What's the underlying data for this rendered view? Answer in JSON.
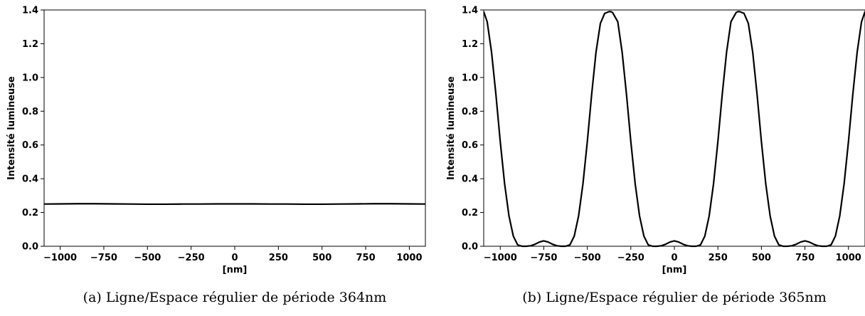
{
  "chart_data": [
    {
      "type": "line",
      "caption": "(a) Ligne/Espace régulier de période 364nm",
      "xlabel": "[nm]",
      "ylabel": "Intensité lumineuse",
      "xlim": [
        -1092,
        1092
      ],
      "ylim": [
        0,
        1.4
      ],
      "xticks": [
        -1000,
        -750,
        -500,
        -250,
        0,
        250,
        500,
        750,
        1000
      ],
      "xtick_labels": [
        "−1000",
        "−750",
        "−500",
        "−250",
        "0",
        "250",
        "500",
        "750",
        "1000"
      ],
      "yticks": [
        0.0,
        0.2,
        0.4,
        0.6,
        0.8,
        1.0,
        1.2,
        1.4
      ],
      "ytick_labels": [
        "0.0",
        "0.2",
        "0.4",
        "0.6",
        "0.8",
        "1.0",
        "1.2",
        "1.4"
      ],
      "grid": false,
      "line_color": "#000000",
      "series": [
        {
          "x": [
            -1092,
            -1000,
            -900,
            -800,
            -700,
            -600,
            -500,
            -400,
            -300,
            -200,
            -100,
            0,
            100,
            200,
            300,
            400,
            500,
            600,
            700,
            800,
            900,
            1000,
            1092
          ],
          "y": [
            0.25,
            0.251,
            0.252,
            0.252,
            0.251,
            0.25,
            0.249,
            0.249,
            0.25,
            0.25,
            0.251,
            0.251,
            0.251,
            0.25,
            0.25,
            0.249,
            0.249,
            0.25,
            0.251,
            0.252,
            0.252,
            0.251,
            0.25
          ]
        }
      ]
    },
    {
      "type": "line",
      "caption": "(b) Ligne/Espace régulier de période 365nm",
      "xlabel": "[nm]",
      "ylabel": "Intensité lumineuse",
      "xlim": [
        -1095,
        1095
      ],
      "ylim": [
        0,
        1.4
      ],
      "xticks": [
        -1000,
        -750,
        -500,
        -250,
        0,
        250,
        500,
        750,
        1000
      ],
      "xtick_labels": [
        "−1000",
        "−750",
        "−500",
        "−250",
        "0",
        "250",
        "500",
        "750",
        "1000"
      ],
      "yticks": [
        0.0,
        0.2,
        0.4,
        0.6,
        0.8,
        1.0,
        1.2,
        1.4
      ],
      "ytick_labels": [
        "0.0",
        "0.2",
        "0.4",
        "0.6",
        "0.8",
        "1.0",
        "1.2",
        "1.4"
      ],
      "grid": false,
      "line_color": "#000000",
      "series": [
        {
          "x": [
            -1095,
            -1075,
            -1050,
            -1025,
            -1000,
            -975,
            -950,
            -925,
            -900,
            -875,
            -850,
            -825,
            -800,
            -775,
            -750,
            -725,
            -700,
            -675,
            -650,
            -625,
            -600,
            -575,
            -550,
            -525,
            -500,
            -475,
            -450,
            -425,
            -400,
            -375,
            -365,
            -355,
            -325,
            -300,
            -275,
            -250,
            -225,
            -200,
            -175,
            -150,
            -125,
            -100,
            -75,
            -50,
            -25,
            0,
            25,
            50,
            75,
            100,
            125,
            150,
            175,
            200,
            225,
            250,
            275,
            300,
            325,
            355,
            365,
            375,
            400,
            425,
            450,
            475,
            500,
            525,
            550,
            575,
            600,
            625,
            650,
            675,
            700,
            725,
            750,
            775,
            800,
            825,
            850,
            875,
            900,
            925,
            950,
            975,
            1000,
            1025,
            1050,
            1075,
            1095
          ],
          "y": [
            1.39,
            1.33,
            1.15,
            0.9,
            0.62,
            0.37,
            0.18,
            0.06,
            0.008,
            0.0,
            0.0,
            0.003,
            0.012,
            0.025,
            0.032,
            0.025,
            0.012,
            0.003,
            0.0,
            0.0,
            0.008,
            0.06,
            0.18,
            0.37,
            0.62,
            0.9,
            1.15,
            1.32,
            1.38,
            1.39,
            1.39,
            1.385,
            1.33,
            1.15,
            0.9,
            0.62,
            0.37,
            0.18,
            0.06,
            0.008,
            0.0,
            0.0,
            0.003,
            0.012,
            0.025,
            0.032,
            0.025,
            0.012,
            0.003,
            0.0,
            0.0,
            0.008,
            0.06,
            0.18,
            0.37,
            0.62,
            0.9,
            1.15,
            1.33,
            1.385,
            1.39,
            1.39,
            1.38,
            1.32,
            1.15,
            0.9,
            0.62,
            0.37,
            0.18,
            0.06,
            0.008,
            0.0,
            0.0,
            0.003,
            0.012,
            0.025,
            0.032,
            0.025,
            0.012,
            0.003,
            0.0,
            0.0,
            0.008,
            0.06,
            0.18,
            0.37,
            0.62,
            0.9,
            1.15,
            1.33,
            1.39
          ]
        }
      ]
    }
  ]
}
